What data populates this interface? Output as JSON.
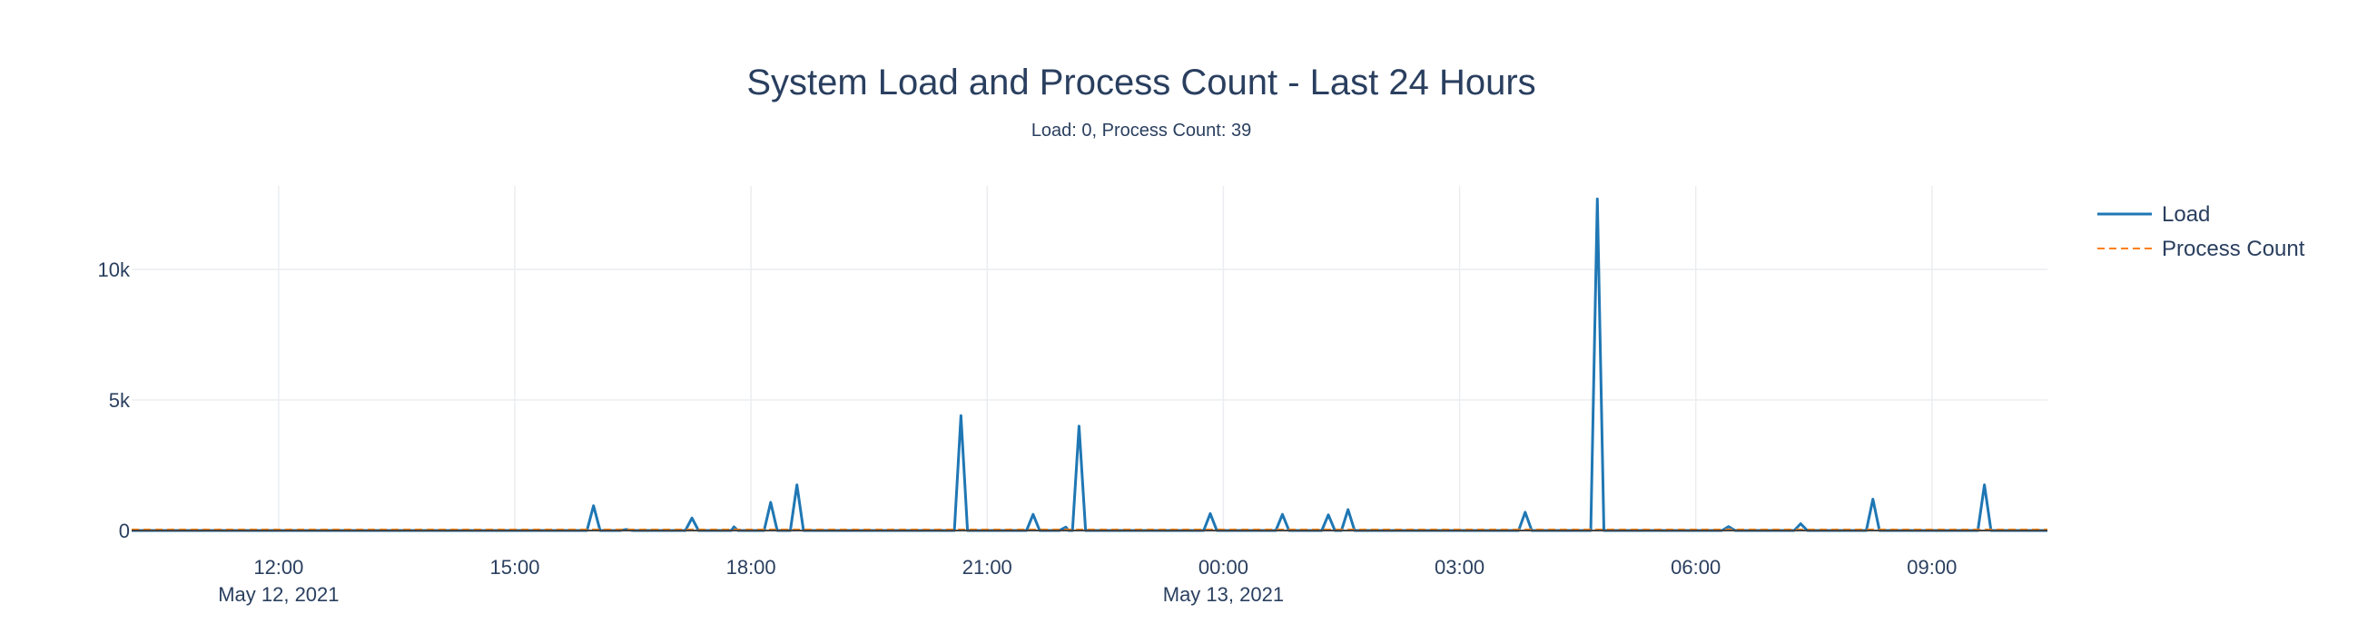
{
  "chart_data": {
    "type": "line",
    "title": "System Load and Process Count - Last 24 Hours",
    "subtitle": "Load: 0, Process Count: 39",
    "xlabel": "",
    "ylabel": "",
    "x_range": [
      "2021-05-12 10:08",
      "2021-05-13 10:28"
    ],
    "ylim": [
      0,
      13200
    ],
    "y_ticks": [
      {
        "value": 0,
        "label": "0"
      },
      {
        "value": 5000,
        "label": "5k"
      },
      {
        "value": 10000,
        "label": "10k"
      }
    ],
    "x_ticks": [
      {
        "time": "2021-05-12 12:00",
        "label": "12:00",
        "date_label": "May 12, 2021"
      },
      {
        "time": "2021-05-12 15:00",
        "label": "15:00",
        "date_label": ""
      },
      {
        "time": "2021-05-12 18:00",
        "label": "18:00",
        "date_label": ""
      },
      {
        "time": "2021-05-12 21:00",
        "label": "21:00",
        "date_label": ""
      },
      {
        "time": "2021-05-13 00:00",
        "label": "00:00",
        "date_label": "May 13, 2021"
      },
      {
        "time": "2021-05-13 03:00",
        "label": "03:00",
        "date_label": ""
      },
      {
        "time": "2021-05-13 06:00",
        "label": "06:00",
        "date_label": ""
      },
      {
        "time": "2021-05-13 09:00",
        "label": "09:00",
        "date_label": ""
      }
    ],
    "grid": true,
    "legend_position": "top-right",
    "series": [
      {
        "name": "Load",
        "color": "#1f77b4",
        "dash": "solid",
        "points": [
          [
            "2021-05-12 10:08",
            0
          ],
          [
            "2021-05-12 15:55",
            0
          ],
          [
            "2021-05-12 16:00",
            950
          ],
          [
            "2021-05-12 16:05",
            0
          ],
          [
            "2021-05-12 16:20",
            0
          ],
          [
            "2021-05-12 16:25",
            40
          ],
          [
            "2021-05-12 16:30",
            0
          ],
          [
            "2021-05-12 17:10",
            0
          ],
          [
            "2021-05-12 17:15",
            480
          ],
          [
            "2021-05-12 17:20",
            0
          ],
          [
            "2021-05-12 17:45",
            0
          ],
          [
            "2021-05-12 17:47",
            140
          ],
          [
            "2021-05-12 17:50",
            0
          ],
          [
            "2021-05-12 18:10",
            0
          ],
          [
            "2021-05-12 18:15",
            1080
          ],
          [
            "2021-05-12 18:20",
            0
          ],
          [
            "2021-05-12 18:30",
            0
          ],
          [
            "2021-05-12 18:35",
            1750
          ],
          [
            "2021-05-12 18:40",
            0
          ],
          [
            "2021-05-12 20:35",
            0
          ],
          [
            "2021-05-12 20:40",
            4400
          ],
          [
            "2021-05-12 20:45",
            0
          ],
          [
            "2021-05-12 21:30",
            0
          ],
          [
            "2021-05-12 21:35",
            620
          ],
          [
            "2021-05-12 21:40",
            0
          ],
          [
            "2021-05-12 21:55",
            0
          ],
          [
            "2021-05-12 22:00",
            130
          ],
          [
            "2021-05-12 22:02",
            0
          ],
          [
            "2021-05-12 22:05",
            0
          ],
          [
            "2021-05-12 22:10",
            4000
          ],
          [
            "2021-05-12 22:15",
            0
          ],
          [
            "2021-05-12 23:45",
            0
          ],
          [
            "2021-05-12 23:50",
            650
          ],
          [
            "2021-05-12 23:55",
            0
          ],
          [
            "2021-05-13 00:40",
            0
          ],
          [
            "2021-05-13 00:45",
            620
          ],
          [
            "2021-05-13 00:50",
            0
          ],
          [
            "2021-05-13 01:15",
            0
          ],
          [
            "2021-05-13 01:20",
            600
          ],
          [
            "2021-05-13 01:25",
            0
          ],
          [
            "2021-05-13 01:30",
            0
          ],
          [
            "2021-05-13 01:35",
            800
          ],
          [
            "2021-05-13 01:40",
            0
          ],
          [
            "2021-05-13 03:45",
            0
          ],
          [
            "2021-05-13 03:50",
            700
          ],
          [
            "2021-05-13 03:55",
            0
          ],
          [
            "2021-05-13 04:40",
            0
          ],
          [
            "2021-05-13 04:45",
            12700
          ],
          [
            "2021-05-13 04:50",
            0
          ],
          [
            "2021-05-13 06:20",
            0
          ],
          [
            "2021-05-13 06:25",
            150
          ],
          [
            "2021-05-13 06:30",
            0
          ],
          [
            "2021-05-13 07:15",
            0
          ],
          [
            "2021-05-13 07:20",
            260
          ],
          [
            "2021-05-13 07:25",
            0
          ],
          [
            "2021-05-13 08:10",
            0
          ],
          [
            "2021-05-13 08:15",
            1200
          ],
          [
            "2021-05-13 08:20",
            0
          ],
          [
            "2021-05-13 09:35",
            0
          ],
          [
            "2021-05-13 09:40",
            1750
          ],
          [
            "2021-05-13 09:45",
            0
          ],
          [
            "2021-05-13 10:28",
            0
          ]
        ]
      },
      {
        "name": "Process Count",
        "color": "#ff7f0e",
        "dash": "dash",
        "points": [
          [
            "2021-05-12 10:08",
            39
          ],
          [
            "2021-05-13 10:28",
            39
          ]
        ]
      }
    ]
  }
}
